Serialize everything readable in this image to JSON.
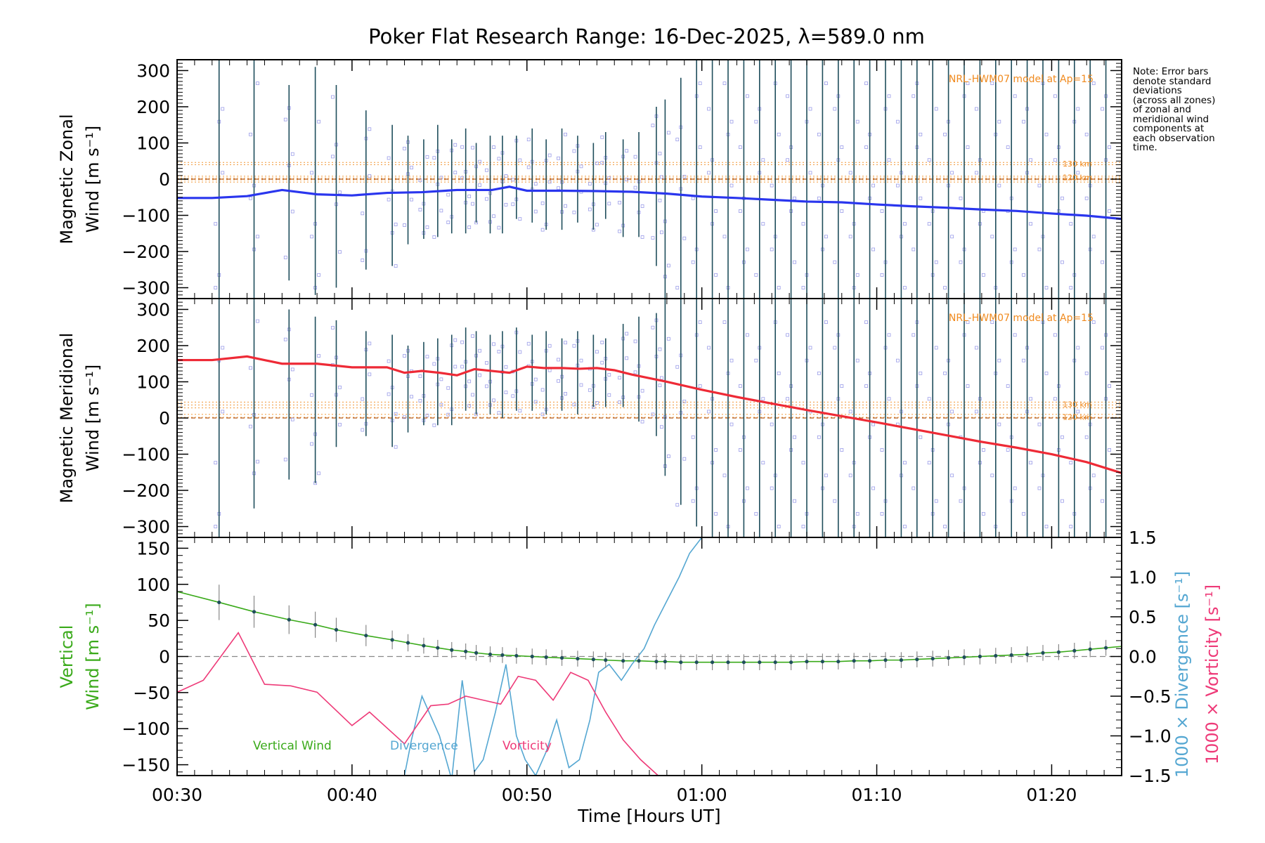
{
  "chart_data": [
    {
      "type": "line",
      "title": "Poker Flat Research Range: 16-Dec-2025, λ=589.0 nm",
      "ylabel_line1": "Magnetic Zonal",
      "ylabel_line2": "Wind [m s⁻¹]",
      "ylim": [
        -330,
        330
      ],
      "yticks": [
        -300,
        -200,
        -100,
        0,
        100,
        200,
        300
      ],
      "model_label": "NRL-HWM07 model at Ap=15",
      "model_levels": [
        {
          "label": "130 km",
          "value": 45
        },
        {
          "label": "120 km",
          "value": 7
        }
      ],
      "model_lines": [
        46,
        40,
        8,
        3,
        -2,
        -8
      ],
      "series": [
        {
          "name": "Zonal Wind",
          "color": "#2a36ee",
          "x": [
            30,
            32,
            34,
            36,
            38,
            40,
            42,
            44,
            46,
            48,
            49,
            50,
            52,
            54,
            56,
            58,
            60,
            62,
            64,
            66,
            68,
            70,
            72,
            74,
            76,
            78,
            80,
            82,
            84
          ],
          "y": [
            -52,
            -52,
            -47,
            -30,
            -42,
            -45,
            -38,
            -36,
            -30,
            -30,
            -21,
            -32,
            -32,
            -33,
            -35,
            -40,
            -48,
            -52,
            -57,
            -62,
            -64,
            -70,
            -75,
            -79,
            -84,
            -88,
            -95,
            -101,
            -110
          ]
        }
      ],
      "error_bars": {
        "x": [
          32.4,
          34.4,
          36.4,
          37.9,
          39.1,
          40.8,
          42.3,
          43.2,
          44.1,
          44.9,
          45.7,
          46.5,
          47.1,
          47.9,
          48.6,
          49.4,
          50.3,
          51.1,
          52.0,
          52.9,
          53.8,
          54.5,
          55.5,
          56.4,
          57.4,
          57.9,
          58.8,
          59.7,
          60.6,
          61.5,
          62.4,
          63.3,
          64.2,
          65.1,
          66.0,
          66.9,
          67.8,
          68.7,
          69.6,
          70.5,
          71.4,
          72.3,
          73.2,
          74.1,
          75.0,
          75.9,
          76.8,
          77.7,
          78.6,
          79.5,
          80.4,
          81.3,
          82.2,
          83.1
        ],
        "low": [
          -330,
          -330,
          -280,
          -320,
          -300,
          -250,
          -240,
          -180,
          -165,
          -160,
          -150,
          -150,
          -120,
          -150,
          -150,
          -110,
          -120,
          -140,
          -140,
          -120,
          -140,
          -110,
          -160,
          -160,
          -240,
          -330,
          -330,
          -330,
          -330,
          -330,
          -330,
          -330,
          -330,
          -330,
          -330,
          -330,
          -330,
          -330,
          -330,
          -330,
          -330,
          -330,
          -330,
          -330,
          -330,
          -330,
          -330,
          -330,
          -330,
          -330,
          -330,
          -330,
          -330,
          -330
        ],
        "high": [
          330,
          330,
          260,
          310,
          260,
          190,
          150,
          120,
          110,
          150,
          110,
          140,
          100,
          120,
          120,
          120,
          140,
          110,
          140,
          120,
          100,
          130,
          110,
          130,
          200,
          220,
          280,
          330,
          330,
          330,
          330,
          330,
          330,
          330,
          330,
          330,
          330,
          330,
          330,
          330,
          330,
          330,
          330,
          330,
          330,
          330,
          330,
          330,
          330,
          330,
          330,
          330,
          330,
          330
        ]
      }
    },
    {
      "type": "line",
      "ylabel_line1": "Magnetic Meridional",
      "ylabel_line2": "Wind [m s⁻¹]",
      "ylim": [
        -330,
        330
      ],
      "yticks": [
        -300,
        -200,
        -100,
        0,
        100,
        200,
        300
      ],
      "model_label": "NRL-HWM07 model at Ap=15",
      "model_levels": [
        {
          "label": "130 km",
          "value": 40
        },
        {
          "label": "120 km",
          "value": 5
        }
      ],
      "model_lines": [
        44,
        36,
        28,
        10,
        2
      ],
      "series": [
        {
          "name": "Meridional Wind",
          "color": "#ee2a36",
          "x": [
            30,
            32,
            34,
            36,
            38,
            40,
            42,
            43,
            44,
            45,
            46,
            47,
            48,
            49,
            50,
            51,
            52,
            53,
            54,
            55,
            56,
            58,
            60,
            62,
            64,
            66,
            68,
            70,
            72,
            74,
            76,
            78,
            80,
            82,
            84
          ],
          "y": [
            160,
            160,
            170,
            150,
            150,
            140,
            140,
            125,
            130,
            125,
            118,
            135,
            130,
            125,
            142,
            138,
            138,
            136,
            138,
            132,
            120,
            100,
            78,
            58,
            40,
            22,
            5,
            -12,
            -30,
            -48,
            -66,
            -82,
            -100,
            -122,
            -152
          ]
        }
      ],
      "error_bars": {
        "x": [
          32.4,
          34.4,
          36.4,
          37.9,
          39.1,
          40.8,
          42.3,
          43.2,
          44.1,
          44.9,
          45.7,
          46.5,
          47.1,
          47.9,
          48.6,
          49.4,
          50.3,
          51.1,
          52.0,
          52.9,
          53.8,
          54.5,
          55.5,
          56.4,
          57.4,
          57.9,
          58.8,
          59.7,
          60.6,
          61.5,
          62.4,
          63.3,
          64.2,
          65.1,
          66.0,
          66.9,
          67.8,
          68.7,
          69.6,
          70.5,
          71.4,
          72.3,
          73.2,
          74.1,
          75.0,
          75.9,
          76.8,
          77.7,
          78.6,
          79.5,
          80.4,
          81.3,
          82.2,
          83.1
        ],
        "low": [
          -330,
          -250,
          -170,
          -180,
          -80,
          -50,
          -80,
          -40,
          -20,
          -20,
          -20,
          20,
          10,
          10,
          0,
          20,
          20,
          10,
          20,
          10,
          30,
          30,
          30,
          -10,
          -50,
          -160,
          -240,
          -300,
          -330,
          -330,
          -330,
          -330,
          -330,
          -330,
          -330,
          -330,
          -330,
          -330,
          -330,
          -330,
          -330,
          -330,
          -330,
          -330,
          -330,
          -330,
          -330,
          -330,
          -330,
          -330,
          -330,
          -330,
          -330,
          -330
        ],
        "high": [
          330,
          330,
          300,
          280,
          270,
          240,
          230,
          200,
          210,
          220,
          230,
          250,
          240,
          230,
          240,
          250,
          230,
          240,
          220,
          240,
          230,
          220,
          260,
          280,
          290,
          330,
          330,
          330,
          330,
          330,
          330,
          330,
          330,
          330,
          330,
          330,
          330,
          330,
          330,
          330,
          330,
          330,
          330,
          330,
          330,
          330,
          330,
          330,
          330,
          330,
          330,
          330,
          330,
          330
        ]
      }
    },
    {
      "type": "line",
      "xlabel": "Time [Hours UT]",
      "xticks": [
        "00:30",
        "00:40",
        "00:50",
        "01:00",
        "01:10",
        "01:20"
      ],
      "xlim": [
        30,
        84
      ],
      "ylabel_line1": "Vertical",
      "ylabel_line2": "Wind [m s⁻¹]",
      "ylim": [
        -165,
        165
      ],
      "yticks": [
        -150,
        -100,
        -50,
        0,
        50,
        100,
        150
      ],
      "y2label_divergence": "1000 × Divergence [s⁻¹]",
      "y2label_vorticity": "1000 × Vorticity [s⁻¹]",
      "y2lim": [
        -1.5,
        1.5
      ],
      "y2ticks": [
        "-1.5",
        "-1.0",
        "-0.5",
        "0.0",
        "0.5",
        "1.0",
        "1.5"
      ],
      "legend": [
        "Vertical Wind",
        "Divergence",
        "Vorticity"
      ],
      "series": [
        {
          "name": "Vertical Wind",
          "color": "#3aaa1a",
          "x": [
            30,
            32.4,
            34.4,
            36.4,
            37.9,
            39.1,
            40.8,
            42.3,
            43.2,
            44.1,
            44.9,
            45.7,
            46.5,
            47.1,
            47.9,
            48.6,
            49.4,
            50.3,
            51.1,
            52.0,
            52.9,
            53.8,
            54.5,
            55.5,
            56.4,
            57.4,
            57.9,
            58.8,
            59.7,
            60.6,
            61.5,
            62.4,
            63.3,
            64.2,
            65.1,
            66.0,
            66.9,
            67.8,
            68.7,
            69.6,
            70.5,
            71.4,
            72.3,
            73.2,
            74.1,
            75.0,
            75.9,
            76.8,
            77.7,
            78.6,
            79.5,
            80.4,
            81.3,
            82.2,
            83.1,
            84
          ],
          "y": [
            90,
            75,
            62,
            51,
            44,
            37,
            29,
            23,
            19,
            15,
            12,
            9,
            7,
            5,
            3,
            2,
            1,
            0,
            -1,
            -2,
            -3,
            -4,
            -5,
            -6,
            -6,
            -7,
            -7,
            -8,
            -8,
            -8,
            -8,
            -8,
            -8,
            -8,
            -8,
            -7,
            -7,
            -7,
            -6,
            -6,
            -5,
            -5,
            -4,
            -3,
            -2,
            -1,
            0,
            1,
            2,
            3,
            5,
            6,
            8,
            10,
            12,
            14
          ]
        },
        {
          "name": "Divergence",
          "color": "#55a7d2",
          "axis": "y2",
          "x": [
            43.0,
            43.4,
            44.0,
            45.0,
            45.7,
            46.3,
            47.0,
            47.5,
            48.2,
            48.8,
            49.4,
            49.9,
            50.5,
            51.1,
            51.7,
            52.4,
            53.0,
            53.6,
            54.1,
            54.7,
            55.4,
            56.0,
            56.7,
            57.3,
            58.0,
            58.7,
            59.3,
            60.0
          ],
          "y": [
            -1.5,
            -1.05,
            -0.5,
            -1.0,
            -1.55,
            -0.3,
            -1.45,
            -1.3,
            -0.7,
            -0.1,
            -1.0,
            -1.3,
            -1.5,
            -1.2,
            -0.8,
            -1.4,
            -1.3,
            -0.8,
            -0.2,
            -0.1,
            -0.3,
            -0.1,
            0.1,
            0.4,
            0.7,
            1.0,
            1.3,
            1.5
          ]
        },
        {
          "name": "Vorticity",
          "color": "#ee3a78",
          "axis": "y2",
          "x": [
            30,
            31.5,
            33.5,
            35,
            36.5,
            38,
            40,
            41,
            43,
            44.5,
            45.5,
            46.5,
            47.5,
            48.5,
            49.5,
            50.5,
            51.5,
            52.5,
            53.5,
            54.5,
            55.5,
            56.5,
            57.5,
            58.5,
            60
          ],
          "y": [
            -0.45,
            -0.3,
            0.3,
            -0.35,
            -0.37,
            -0.45,
            -0.87,
            -0.7,
            -1.1,
            -0.62,
            -0.6,
            -0.5,
            -0.55,
            -0.6,
            -0.25,
            -0.3,
            -0.55,
            -0.2,
            -0.3,
            -0.7,
            -1.05,
            -1.3,
            -1.5,
            -1.5,
            -1.5
          ]
        }
      ]
    }
  ],
  "note": {
    "lines": [
      "Note: Error bars",
      "denote standard",
      "deviations",
      "(across all zones)",
      "of zonal and",
      "meridional wind",
      "components at",
      "each observation",
      "time."
    ]
  },
  "colors": {
    "zonal": "#2a36ee",
    "meridional": "#ee2a36",
    "model": "#f08a1e",
    "errorbar": "#1f4e5c",
    "scatter": "#9a9ce8",
    "vertical": "#3aaa1a",
    "divergence": "#55a7d2",
    "vorticity": "#ee3a78"
  }
}
